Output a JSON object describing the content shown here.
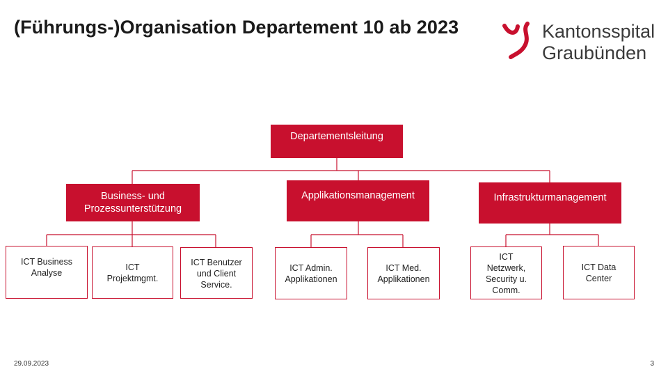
{
  "title": "(Führungs-)Organisation Departement 10 ab 2023",
  "logo": {
    "line1": "Kantonsspital",
    "line2": "Graubünden"
  },
  "org": {
    "top": "Departementsleitung",
    "departments": [
      {
        "label": "Business- und\nProzessunterstützung",
        "units": [
          "ICT Business\nAnalyse",
          "ICT\nProjektmgmt.",
          "ICT Benutzer\nund Client\nService."
        ]
      },
      {
        "label": "Applikationsmanagement",
        "units": [
          "ICT Admin.\nApplikationen",
          "ICT Med.\nApplikationen"
        ]
      },
      {
        "label": "Infrastrukturmanagement",
        "units": [
          "ICT\nNetzwerk,\nSecurity u.\nComm.",
          "ICT Data\nCenter"
        ]
      }
    ]
  },
  "footer": {
    "date": "29.09.2023",
    "page": "3"
  },
  "colors": {
    "accent": "#c8102e"
  }
}
